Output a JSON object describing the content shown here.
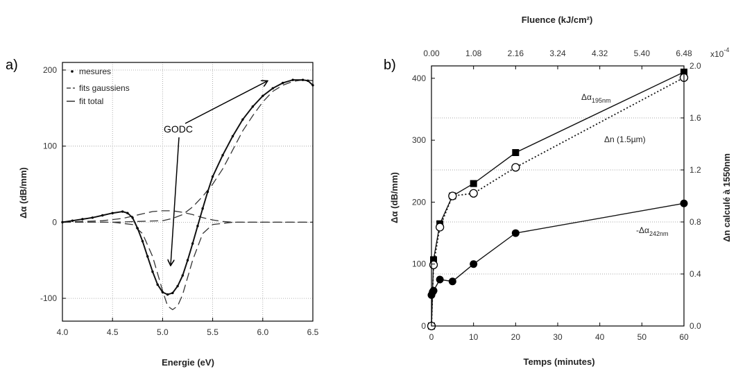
{
  "chart_data": [
    {
      "panel_label": "a)",
      "type": "line",
      "xlabel": "Energie (eV)",
      "ylabel": "Δα (dB/mm)",
      "xlim": [
        4.0,
        6.5
      ],
      "ylim": [
        -130,
        210
      ],
      "x_ticks": [
        "4.0",
        "4.5",
        "5.0",
        "5.5",
        "6.0",
        "6.5"
      ],
      "x_tick_values": [
        4.0,
        4.5,
        5.0,
        5.5,
        6.0,
        6.5
      ],
      "y_ticks": [
        "200",
        "100",
        "0",
        "-100"
      ],
      "y_tick_values": [
        200,
        100,
        0,
        -100
      ],
      "grid": true,
      "legend_position": "top-left",
      "annotation": "GODC",
      "series": [
        {
          "name": "mesures",
          "style": "dots",
          "x": [
            4.0,
            4.1,
            4.2,
            4.3,
            4.4,
            4.5,
            4.6,
            4.65,
            4.7,
            4.75,
            4.8,
            4.85,
            4.9,
            4.95,
            5.0,
            5.05,
            5.1,
            5.15,
            5.2,
            5.25,
            5.3,
            5.35,
            5.4,
            5.45,
            5.5,
            5.6,
            5.7,
            5.8,
            5.9,
            6.0,
            6.1,
            6.2,
            6.3,
            6.4,
            6.45,
            6.5
          ],
          "y": [
            0,
            2,
            4,
            6,
            9,
            12,
            14,
            12,
            6,
            -8,
            -25,
            -45,
            -65,
            -82,
            -92,
            -95,
            -93,
            -84,
            -70,
            -50,
            -28,
            -5,
            18,
            40,
            60,
            88,
            113,
            135,
            152,
            166,
            176,
            183,
            187,
            187,
            186,
            180
          ]
        },
        {
          "name": "fits gaussiens",
          "style": "long-dash",
          "components": [
            {
              "x": [
                4.0,
                4.2,
                4.4,
                4.6,
                4.7,
                4.8,
                4.9,
                5.0,
                5.1,
                5.2,
                5.3,
                5.4,
                5.5,
                5.6,
                5.7,
                5.8,
                6.0,
                6.2,
                6.5
              ],
              "y": [
                0,
                1,
                2,
                5,
                8,
                11,
                14,
                15,
                15,
                13,
                10,
                6,
                3,
                1,
                0,
                0,
                0,
                0,
                0
              ]
            },
            {
              "x": [
                4.0,
                4.5,
                4.7,
                4.8,
                4.9,
                5.0,
                5.05,
                5.1,
                5.15,
                5.2,
                5.3,
                5.4,
                5.5,
                5.7,
                6.0,
                6.5
              ],
              "y": [
                0,
                0,
                -3,
                -15,
                -45,
                -90,
                -110,
                -115,
                -110,
                -95,
                -50,
                -15,
                -3,
                0,
                0,
                0
              ]
            },
            {
              "x": [
                4.0,
                4.5,
                5.0,
                5.1,
                5.2,
                5.3,
                5.4,
                5.5,
                5.6,
                5.7,
                5.8,
                5.9,
                6.0,
                6.1,
                6.2,
                6.3,
                6.4,
                6.5
              ],
              "y": [
                0,
                0,
                2,
                5,
                10,
                20,
                34,
                50,
                70,
                95,
                120,
                140,
                158,
                172,
                180,
                185,
                187,
                186
              ]
            }
          ]
        },
        {
          "name": "fit total",
          "style": "solid",
          "x": [
            4.0,
            4.1,
            4.2,
            4.3,
            4.4,
            4.5,
            4.6,
            4.65,
            4.7,
            4.75,
            4.8,
            4.85,
            4.9,
            4.95,
            5.0,
            5.05,
            5.1,
            5.15,
            5.2,
            5.25,
            5.3,
            5.35,
            5.4,
            5.45,
            5.5,
            5.6,
            5.7,
            5.8,
            5.9,
            6.0,
            6.1,
            6.2,
            6.3,
            6.4,
            6.45,
            6.5
          ],
          "y": [
            0,
            2,
            4,
            6,
            9,
            12,
            14,
            12,
            6,
            -8,
            -25,
            -45,
            -65,
            -82,
            -92,
            -95,
            -93,
            -84,
            -70,
            -50,
            -28,
            -5,
            18,
            40,
            60,
            88,
            113,
            135,
            152,
            166,
            176,
            183,
            187,
            187,
            186,
            180
          ]
        }
      ]
    },
    {
      "panel_label": "b)",
      "type": "line",
      "xlabel": "Temps (minutes)",
      "x2label": "Fluence (kJ/cm²)",
      "ylabel": "Δα (dB/mm)",
      "y2label": "Δn calculé à 1550nm",
      "y2_exponent": "x10",
      "y2_exponent_power": "-4",
      "xlim": [
        0,
        60
      ],
      "ylim": [
        0,
        420
      ],
      "y2lim": [
        0,
        2.0
      ],
      "x_ticks": [
        "0",
        "10",
        "20",
        "30",
        "40",
        "50",
        "60"
      ],
      "x_tick_values": [
        0,
        10,
        20,
        30,
        40,
        50,
        60
      ],
      "x2_ticks": [
        "0.00",
        "1.08",
        "2.16",
        "3.24",
        "4.32",
        "5.40",
        "6.48"
      ],
      "y_ticks": [
        "0",
        "100",
        "200",
        "300",
        "400"
      ],
      "y_tick_values": [
        0,
        100,
        200,
        300,
        400
      ],
      "y2_ticks": [
        "0.0",
        "0.4",
        "0.8",
        "1.2",
        "1.6",
        "2.0"
      ],
      "y2_tick_values": [
        0.0,
        0.4,
        0.8,
        1.2,
        1.6,
        2.0
      ],
      "grid": true,
      "series": [
        {
          "name": "Δα",
          "name_sub": "195nm",
          "marker": "filled-square",
          "line": "solid",
          "x": [
            0,
            0.5,
            2,
            5,
            10,
            20,
            60
          ],
          "y": [
            0,
            107,
            165,
            210,
            230,
            280,
            410
          ]
        },
        {
          "name": "Δn (1.5µm)",
          "marker": "open-circle",
          "line": "dotted",
          "axis": "right",
          "x": [
            0,
            0.5,
            2,
            5,
            10,
            20,
            60
          ],
          "y": [
            0.0,
            0.47,
            0.76,
            1.0,
            1.02,
            1.22,
            1.91
          ]
        },
        {
          "name": "-Δα",
          "name_sub": "242nm",
          "marker": "filled-circle",
          "line": "solid",
          "x": [
            0,
            0.3,
            0.5,
            2,
            5,
            10,
            20,
            60
          ],
          "y": [
            50,
            55,
            57,
            75,
            72,
            100,
            150,
            198
          ]
        }
      ]
    }
  ]
}
